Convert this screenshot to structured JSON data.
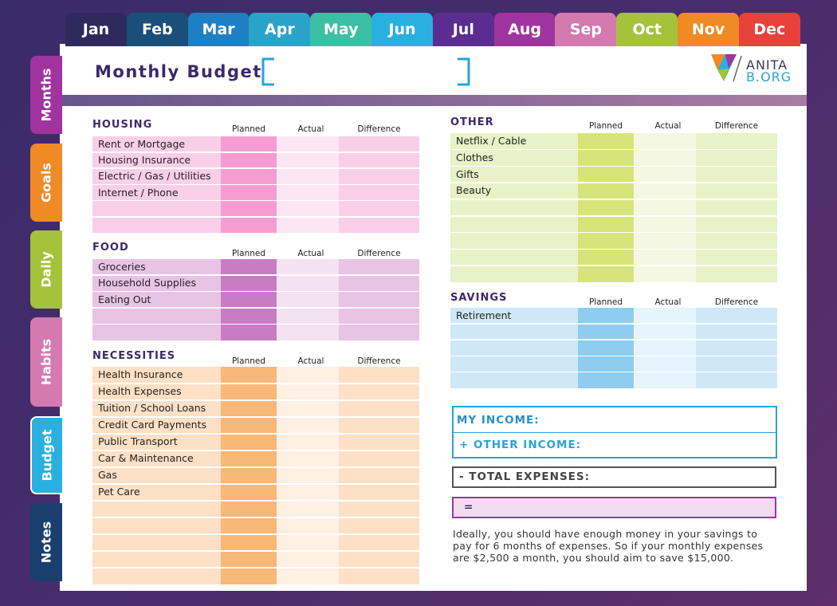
{
  "months": [
    "Jan",
    "Feb",
    "Mar",
    "Apr",
    "May",
    "Jun",
    "Jul",
    "Aug",
    "Sep",
    "Oct",
    "Nov",
    "Dec"
  ],
  "side_tabs": [
    "Months",
    "Goals",
    "Daily",
    "Habits",
    "Budget",
    "Notes"
  ],
  "header": {
    "title": "Monthly Budget",
    "logo_top": "ANITA",
    "logo_bottom": "B.ORG"
  },
  "column_headers": [
    "Planned",
    "Actual",
    "Difference"
  ],
  "sections": [
    {
      "title": "HOUSING",
      "rows": [
        "Rent or Mortgage",
        "Housing Insurance",
        "Electric / Gas / Utilities",
        "Internet / Phone"
      ]
    },
    {
      "title": "FOOD",
      "rows": [
        "Groceries",
        "Household Supplies",
        "Eating Out"
      ]
    },
    {
      "title": "NECESSITIES",
      "rows": [
        "Health Insurance",
        "Health Expenses",
        "Tuition / School Loans",
        "Credit Card Payments",
        "Public Transport",
        "Car & Maintenance",
        "Gas",
        "Pet Care"
      ]
    },
    {
      "title": "OTHER",
      "rows": [
        "Netflix / Cable",
        "Clothes",
        "Gifts",
        "Beauty"
      ]
    },
    {
      "title": "SAVINGS",
      "rows": [
        "Retirement"
      ]
    }
  ],
  "summary": {
    "income": "MY INCOME:",
    "other_income": "+ OTHER INCOME:",
    "total_expenses": "- TOTAL EXPENSES:",
    "equals": "="
  },
  "note": [
    "Ideally, you should have enough money in your savings to",
    "pay for 6 months of expenses. So if your monthly expenses",
    "are $2,500 a month, you should aim to save $15,000."
  ]
}
